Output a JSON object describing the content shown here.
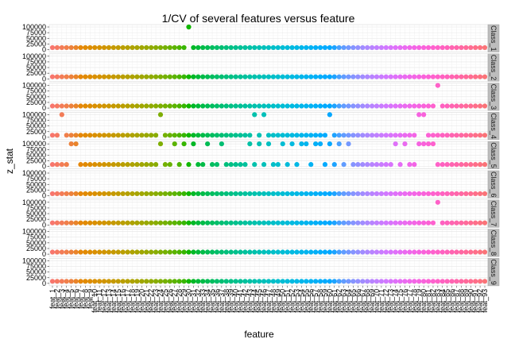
{
  "chart_data": {
    "type": "scatter",
    "title": "1/CV of several features versus feature",
    "xlabel": "feature",
    "ylabel": "z_stat",
    "ylim": [
      0,
      100000
    ],
    "yticks": [
      0,
      25000,
      50000,
      75000,
      100000
    ],
    "ytick_labels": [
      "0",
      "25000",
      "50000",
      "75000",
      "100000"
    ],
    "grid": true,
    "legend": "none",
    "facets": [
      "Class_1",
      "Class_2",
      "Class_3",
      "Class_4",
      "Class_5",
      "Class_6",
      "Class_7",
      "Class_8",
      "Class_9"
    ],
    "categories": [
      "feat_1",
      "feat_2",
      "feat_3",
      "feat_4",
      "feat_5",
      "feat_6",
      "feat_7",
      "feat_8",
      "feat_9",
      "feat_10",
      "feat_11",
      "feat_12",
      "feat_13",
      "feat_14",
      "feat_15",
      "feat_16",
      "feat_17",
      "feat_18",
      "feat_19",
      "feat_20",
      "feat_21",
      "feat_22",
      "feat_23",
      "feat_24",
      "feat_25",
      "feat_26",
      "feat_27",
      "feat_28",
      "feat_29",
      "feat_30",
      "feat_31",
      "feat_32",
      "feat_33",
      "feat_34",
      "feat_35",
      "feat_36",
      "feat_37",
      "feat_38",
      "feat_39",
      "feat_40",
      "feat_41",
      "feat_42",
      "feat_43",
      "feat_44",
      "feat_45",
      "feat_46",
      "feat_47",
      "feat_48",
      "feat_49",
      "feat_50",
      "feat_51",
      "feat_52",
      "feat_53",
      "feat_54",
      "feat_55",
      "feat_56",
      "feat_57",
      "feat_58",
      "feat_59",
      "feat_60",
      "feat_61",
      "feat_62",
      "feat_63",
      "feat_64",
      "feat_65",
      "feat_66",
      "feat_67",
      "feat_68",
      "feat_69",
      "feat_70",
      "feat_71",
      "feat_72",
      "feat_73",
      "feat_74",
      "feat_75",
      "feat_76",
      "feat_77",
      "feat_78",
      "feat_79",
      "feat_80",
      "feat_81",
      "feat_82",
      "feat_83",
      "feat_84",
      "feat_85",
      "feat_86",
      "feat_87",
      "feat_88",
      "feat_89",
      "feat_90",
      "feat_91",
      "feat_92",
      "feat_93"
    ],
    "baseline_value": 9000,
    "high_value": 100000,
    "high_points": {
      "Class_1": [
        "feat_30"
      ],
      "Class_2": [],
      "Class_3": [
        "feat_83"
      ],
      "Class_4": [
        "feat_3",
        "feat_24",
        "feat_44",
        "feat_46",
        "feat_60",
        "feat_79",
        "feat_80"
      ],
      "Class_5": [
        "feat_5",
        "feat_6",
        "feat_24",
        "feat_27",
        "feat_29",
        "feat_31",
        "feat_34",
        "feat_37",
        "feat_43",
        "feat_45",
        "feat_47",
        "feat_50",
        "feat_52",
        "feat_54",
        "feat_55",
        "feat_57",
        "feat_58",
        "feat_60",
        "feat_62",
        "feat_64",
        "feat_74",
        "feat_76",
        "feat_79",
        "feat_80",
        "feat_81",
        "feat_82"
      ],
      "Class_6": [],
      "Class_7": [
        "feat_83"
      ],
      "Class_8": [],
      "Class_9": []
    },
    "color_range": {
      "start_hue": 15,
      "end_hue": 375,
      "chroma_lightness": "default hue palette"
    }
  }
}
